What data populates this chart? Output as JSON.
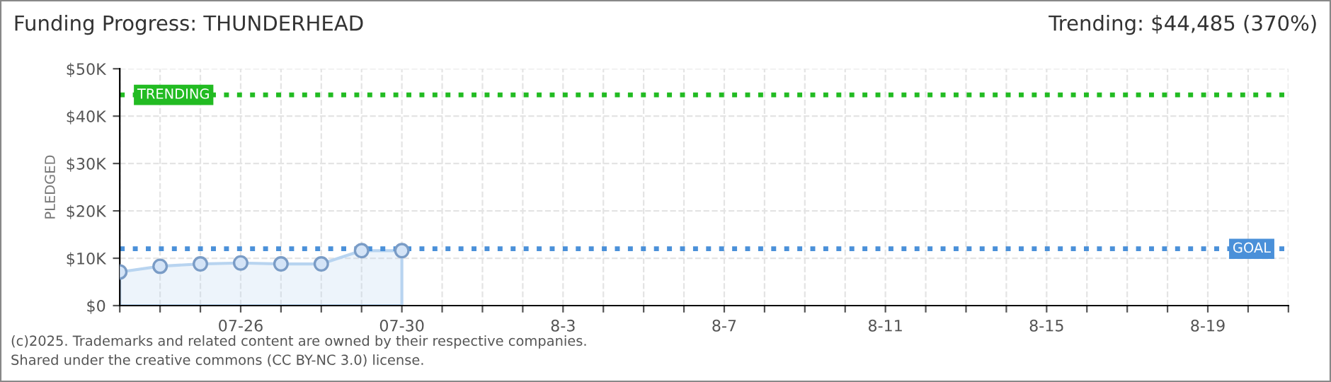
{
  "chart_data": {
    "type": "area",
    "title": "Funding Progress: THUNDERHEAD",
    "subtitle": "Trending: $44,485 (370%)",
    "ylabel": "PLEDGED",
    "x": [
      "2025-07-23",
      "2025-07-24",
      "2025-07-25",
      "2025-07-26",
      "2025-07-27",
      "2025-07-28",
      "2025-07-29",
      "2025-07-30"
    ],
    "series": [
      {
        "color": "#b8d4f0",
        "values": [
          7100,
          8300,
          8800,
          9000,
          8800,
          8800,
          11600,
          11600
        ]
      }
    ],
    "marker": "circle",
    "grid": true,
    "ylim": [
      0,
      50000
    ],
    "yticks": [
      {
        "value": 0,
        "label": "$0"
      },
      {
        "value": 10000,
        "label": "$10K"
      },
      {
        "value": 20000,
        "label": "$20K"
      },
      {
        "value": 30000,
        "label": "$30K"
      },
      {
        "value": 40000,
        "label": "$40K"
      },
      {
        "value": 50000,
        "label": "$50K"
      }
    ],
    "xlim": [
      "2025-07-23",
      "2025-08-21"
    ],
    "xticks": [
      {
        "value": "2025-07-23",
        "label": null
      },
      {
        "value": "2025-07-24",
        "label": null
      },
      {
        "value": "2025-07-25",
        "label": null
      },
      {
        "value": "2025-07-26",
        "label": "07-26"
      },
      {
        "value": "2025-07-27",
        "label": null
      },
      {
        "value": "2025-07-28",
        "label": null
      },
      {
        "value": "2025-07-29",
        "label": null
      },
      {
        "value": "2025-07-30",
        "label": "07-30"
      },
      {
        "value": "2025-07-31",
        "label": null
      },
      {
        "value": "2025-08-01",
        "label": null
      },
      {
        "value": "2025-08-02",
        "label": null
      },
      {
        "value": "2025-08-03",
        "label": "8-3"
      },
      {
        "value": "2025-08-04",
        "label": null
      },
      {
        "value": "2025-08-05",
        "label": null
      },
      {
        "value": "2025-08-06",
        "label": null
      },
      {
        "value": "2025-08-07",
        "label": "8-7"
      },
      {
        "value": "2025-08-08",
        "label": null
      },
      {
        "value": "2025-08-09",
        "label": null
      },
      {
        "value": "2025-08-10",
        "label": null
      },
      {
        "value": "2025-08-11",
        "label": "8-11"
      },
      {
        "value": "2025-08-12",
        "label": null
      },
      {
        "value": "2025-08-13",
        "label": null
      },
      {
        "value": "2025-08-14",
        "label": null
      },
      {
        "value": "2025-08-15",
        "label": "8-15"
      },
      {
        "value": "2025-08-16",
        "label": null
      },
      {
        "value": "2025-08-17",
        "label": null
      },
      {
        "value": "2025-08-18",
        "label": null
      },
      {
        "value": "2025-08-19",
        "label": "8-19"
      },
      {
        "value": "2025-08-20",
        "label": null
      },
      {
        "value": "2025-08-21",
        "label": null
      }
    ],
    "ref_lines": [
      {
        "axis": "y",
        "value": 44485,
        "label": "TRENDING",
        "color": "#22bb22",
        "line_style": "dotted"
      },
      {
        "axis": "y",
        "value": 12000,
        "label": "GOAL",
        "color": "#4a90d9",
        "line_style": "dotted"
      }
    ],
    "annotations": [
      "(c)2025. Trademarks and related content are owned by their respective companies.",
      "Shared under the creative commons (CC BY-NC 3.0) license."
    ]
  }
}
